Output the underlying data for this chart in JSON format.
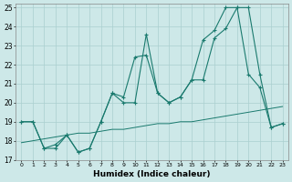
{
  "xlabel": "Humidex (Indice chaleur)",
  "background_color": "#cde8e8",
  "grid_color": "#aacfcf",
  "line_color": "#1a7a6e",
  "xlim": [
    -0.5,
    23.5
  ],
  "ylim": [
    17,
    25.2
  ],
  "xticks": [
    0,
    1,
    2,
    3,
    4,
    5,
    6,
    7,
    8,
    9,
    10,
    11,
    12,
    13,
    14,
    15,
    16,
    17,
    18,
    19,
    20,
    21,
    22,
    23
  ],
  "yticks": [
    17,
    18,
    19,
    20,
    21,
    22,
    23,
    24,
    25
  ],
  "curve1_x": [
    0,
    1,
    2,
    3,
    4,
    5,
    6,
    7,
    8,
    9,
    10,
    11,
    12,
    13,
    14,
    15,
    16,
    17,
    18,
    19,
    20,
    21,
    22,
    23
  ],
  "curve1_y": [
    19,
    19,
    17.6,
    17.6,
    18.3,
    17.4,
    17.6,
    19.0,
    20.5,
    20.0,
    20.0,
    23.6,
    20.5,
    20.0,
    20.3,
    21.2,
    23.3,
    23.8,
    25.0,
    25.0,
    21.5,
    20.8,
    18.7,
    18.9
  ],
  "curve2_x": [
    0,
    1,
    2,
    3,
    4,
    5,
    6,
    7,
    8,
    9,
    10,
    11,
    12,
    13,
    14,
    15,
    16,
    17,
    18,
    19,
    20,
    21,
    22,
    23
  ],
  "curve2_y": [
    19,
    19,
    17.6,
    17.8,
    18.3,
    17.4,
    17.6,
    19.0,
    20.5,
    20.3,
    22.4,
    22.5,
    20.5,
    20.0,
    20.3,
    21.2,
    21.2,
    23.4,
    23.9,
    25.0,
    25.0,
    21.5,
    18.7,
    18.9
  ],
  "curve3_x": [
    0,
    1,
    2,
    3,
    4,
    5,
    6,
    7,
    8,
    9,
    10,
    11,
    12,
    13,
    14,
    15,
    16,
    17,
    18,
    19,
    20,
    21,
    22,
    23
  ],
  "curve3_y": [
    17.9,
    18.0,
    18.1,
    18.2,
    18.3,
    18.4,
    18.4,
    18.5,
    18.6,
    18.6,
    18.7,
    18.8,
    18.9,
    18.9,
    19.0,
    19.0,
    19.1,
    19.2,
    19.3,
    19.4,
    19.5,
    19.6,
    19.7,
    19.8
  ]
}
